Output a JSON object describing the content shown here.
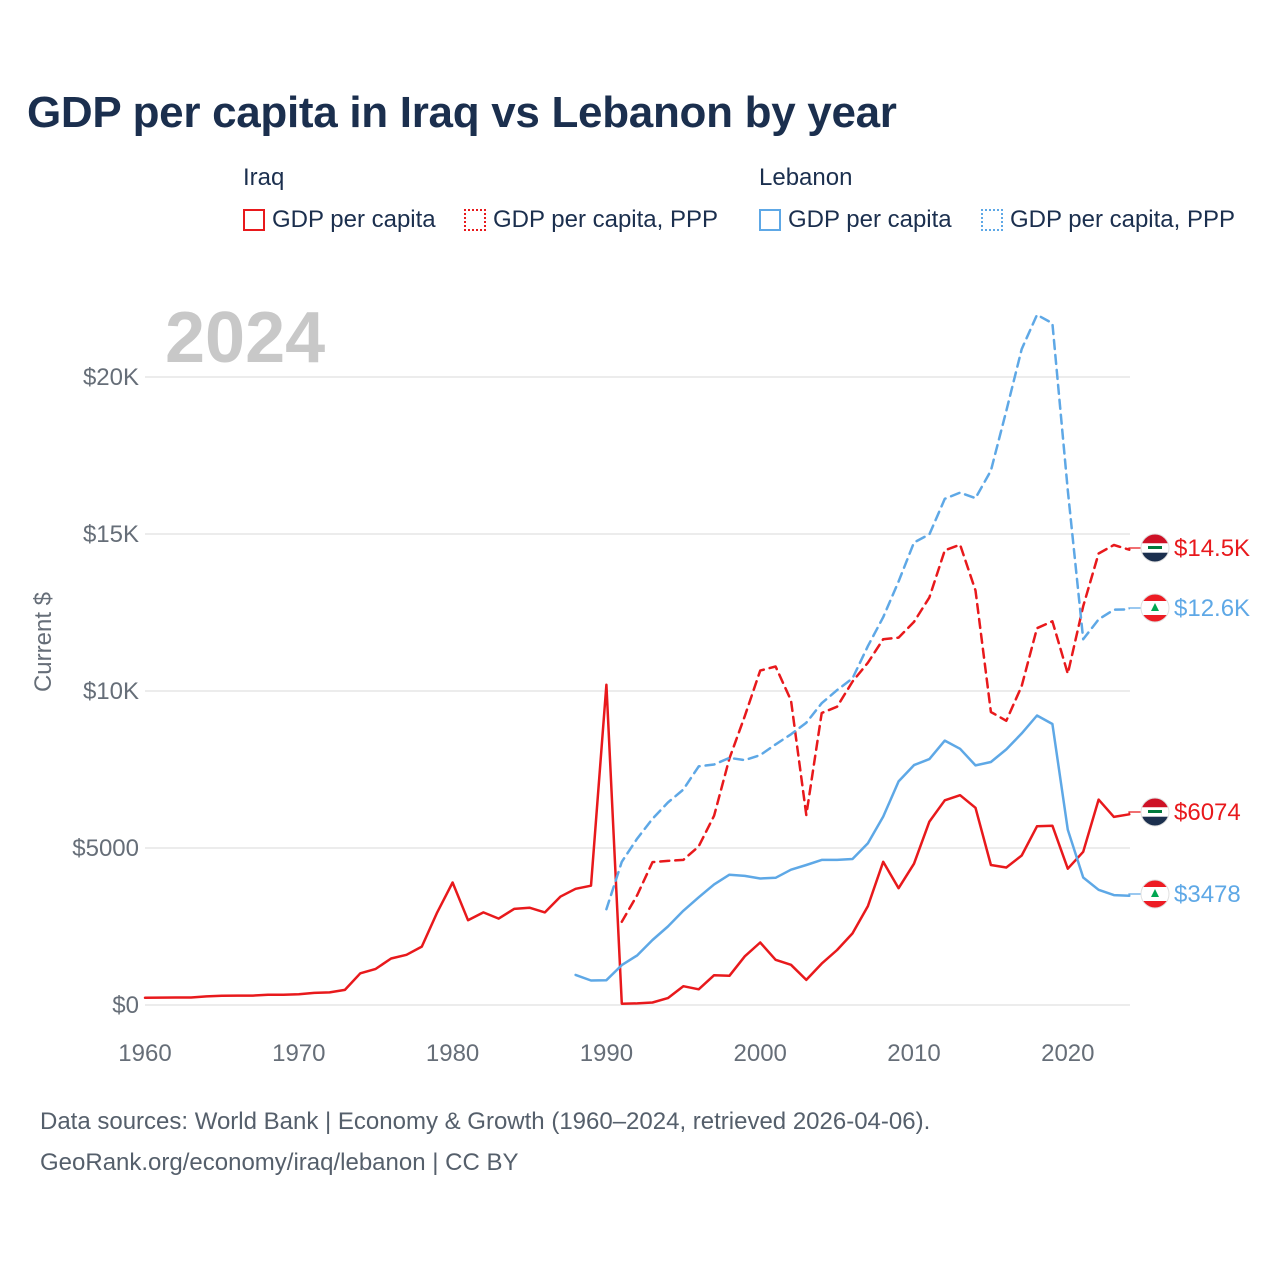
{
  "title": "GDP per capita in Iraq vs Lebanon by year",
  "legend": {
    "iraq": {
      "group": "Iraq",
      "gdp": "GDP per capita",
      "ppp": "GDP per capita, PPP"
    },
    "lebanon": {
      "group": "Lebanon",
      "gdp": "GDP per capita",
      "ppp": "GDP per capita, PPP"
    }
  },
  "year_watermark": "2024",
  "source": {
    "line1": "Data sources: World Bank | Economy & Growth (1960–2024, retrieved 2026-04-06).",
    "line2": "GeoRank.org/economy/iraq/lebanon | CC BY"
  },
  "colors": {
    "iraq": "#e8191c",
    "lebanon": "#5ea8e6",
    "title": "#1b2f4e",
    "axis_text": "#666e78",
    "grid": "#e6e6e6",
    "watermark": "#c8c8c8"
  },
  "chart_data": {
    "type": "line",
    "title": "GDP per capita in Iraq vs Lebanon by year",
    "xlabel": "",
    "ylabel": "Current $",
    "xlim": [
      1960,
      2024
    ],
    "ylim": [
      0,
      22000
    ],
    "x_ticks": [
      1960,
      1970,
      1980,
      1990,
      2000,
      2010,
      2020
    ],
    "y_ticks": [
      {
        "value": 0,
        "label": "$0"
      },
      {
        "value": 5000,
        "label": "$5000"
      },
      {
        "value": 10000,
        "label": "$10K"
      },
      {
        "value": 15000,
        "label": "$15K"
      },
      {
        "value": 20000,
        "label": "$20K"
      }
    ],
    "grid": true,
    "series": [
      {
        "name": "Iraq GDP per capita",
        "country": "Iraq",
        "style": "solid",
        "label": "$6074",
        "flag": "iraq-flag-icon",
        "x": [
          1960,
          1961,
          1962,
          1963,
          1964,
          1965,
          1966,
          1967,
          1968,
          1969,
          1970,
          1971,
          1972,
          1973,
          1974,
          1975,
          1976,
          1977,
          1978,
          1979,
          1980,
          1981,
          1982,
          1983,
          1984,
          1985,
          1986,
          1987,
          1988,
          1989,
          1990,
          1991,
          1992,
          1993,
          1994,
          1995,
          1996,
          1997,
          1998,
          1999,
          2000,
          2001,
          2002,
          2003,
          2004,
          2005,
          2006,
          2007,
          2008,
          2009,
          2010,
          2011,
          2012,
          2013,
          2014,
          2015,
          2016,
          2017,
          2018,
          2019,
          2020,
          2021,
          2022,
          2023,
          2024
        ],
        "values": [
          230,
          235,
          240,
          240,
          275,
          295,
          300,
          300,
          325,
          325,
          340,
          385,
          400,
          480,
          1010,
          1150,
          1480,
          1600,
          1860,
          2950,
          3900,
          2700,
          2950,
          2750,
          3060,
          3100,
          2950,
          3450,
          3700,
          3800,
          10200,
          40,
          50,
          80,
          220,
          600,
          500,
          950,
          930,
          1550,
          1990,
          1440,
          1280,
          800,
          1320,
          1750,
          2280,
          3150,
          4560,
          3720,
          4500,
          5840,
          6520,
          6680,
          6280,
          4460,
          4380,
          4760,
          5690,
          5710,
          4340,
          4880,
          6540,
          5990,
          6074
        ]
      },
      {
        "name": "Iraq GDP per capita, PPP",
        "country": "Iraq",
        "style": "dashed",
        "label": "$14.5K",
        "flag": "iraq-flag-icon",
        "x": [
          1991,
          1992,
          1993,
          1994,
          1995,
          1996,
          1997,
          1998,
          1999,
          2000,
          2001,
          2002,
          2003,
          2004,
          2005,
          2006,
          2007,
          2008,
          2009,
          2010,
          2011,
          2012,
          2013,
          2014,
          2015,
          2016,
          2017,
          2018,
          2019,
          2020,
          2021,
          2022,
          2023,
          2024
        ],
        "values": [
          2650,
          3500,
          4550,
          4590,
          4620,
          5050,
          6030,
          7850,
          9200,
          10650,
          10780,
          9700,
          6050,
          9300,
          9500,
          10300,
          10900,
          11650,
          11700,
          12200,
          12980,
          14480,
          14660,
          13200,
          9330,
          9050,
          10160,
          12000,
          12220,
          10550,
          12700,
          14380,
          14650,
          14500
        ]
      },
      {
        "name": "Lebanon GDP per capita",
        "country": "Lebanon",
        "style": "solid",
        "label": "$3478",
        "flag": "lebanon-flag-icon",
        "x": [
          1988,
          1989,
          1990,
          1991,
          1992,
          1993,
          1994,
          1995,
          1996,
          1997,
          1998,
          1999,
          2000,
          2001,
          2002,
          2003,
          2004,
          2005,
          2006,
          2007,
          2008,
          2009,
          2010,
          2011,
          2012,
          2013,
          2014,
          2015,
          2016,
          2017,
          2018,
          2019,
          2020,
          2021,
          2022,
          2023,
          2024
        ],
        "values": [
          960,
          780,
          790,
          1270,
          1580,
          2070,
          2500,
          3000,
          3430,
          3840,
          4150,
          4110,
          4030,
          4050,
          4310,
          4460,
          4620,
          4620,
          4650,
          5150,
          6000,
          7120,
          7640,
          7830,
          8420,
          8160,
          7630,
          7740,
          8140,
          8650,
          9220,
          8950,
          5580,
          4060,
          3670,
          3500,
          3478
        ]
      },
      {
        "name": "Lebanon GDP per capita, PPP",
        "country": "Lebanon",
        "style": "dashed",
        "label": "$12.6K",
        "flag": "lebanon-flag-icon",
        "x": [
          1990,
          1991,
          1992,
          1993,
          1994,
          1995,
          1996,
          1997,
          1998,
          1999,
          2000,
          2001,
          2002,
          2003,
          2004,
          2005,
          2006,
          2007,
          2008,
          2009,
          2010,
          2011,
          2012,
          2013,
          2014,
          2015,
          2016,
          2017,
          2018,
          2019,
          2020,
          2021,
          2022,
          2023,
          2024
        ],
        "values": [
          3050,
          4560,
          5300,
          5930,
          6450,
          6860,
          7600,
          7660,
          7870,
          7800,
          7960,
          8300,
          8620,
          8990,
          9610,
          10030,
          10400,
          11430,
          12350,
          13490,
          14730,
          14990,
          16120,
          16320,
          16140,
          17020,
          18920,
          20890,
          21980,
          21710,
          16390,
          11650,
          12280,
          12590,
          12600
        ]
      }
    ]
  }
}
